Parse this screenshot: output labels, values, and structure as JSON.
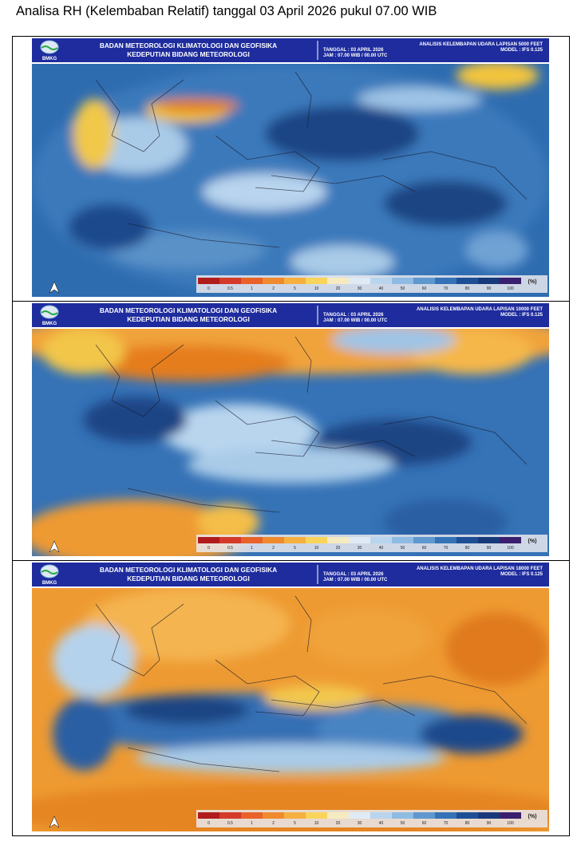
{
  "title": "Analisa RH (Kelembaban Relatif) tanggal 03 April 2026 pukul 07.00 WIB",
  "panels": [
    {
      "logo": "BMKG",
      "agency": "BADAN METEOROLOGI KLIMATOLOGI DAN GEOFISIKA",
      "deputy": "KEDEPUTIAN BIDANG METEOROLOGI",
      "analysis": "ANALISIS KELEMBAPAN UDARA LAPISAN 5000 FEET",
      "date": "TANGGAL : 03 APRIL 2026",
      "time": "JAM : 07.00 WIB / 00.00 UTC",
      "model": "MODEL : IFS 0.125",
      "legend": {
        "labels": [
          "0",
          "0.5",
          "1",
          "2",
          "5",
          "10",
          "20",
          "30",
          "40",
          "50",
          "60",
          "70",
          "80",
          "90",
          "100"
        ],
        "unit": "(%)"
      }
    },
    {
      "logo": "BMKG",
      "agency": "BADAN METEOROLOGI KLIMATOLOGI DAN GEOFISIKA",
      "deputy": "KEDEPUTIAN BIDANG METEOROLOGI",
      "analysis": "ANALISIS KELEMBAPAN UDARA LAPISAN 10000 FEET",
      "date": "TANGGAL : 03 APRIL 2026",
      "time": "JAM : 07.00 WIB / 00.00 UTC",
      "model": "MODEL : IFS 0.125",
      "legend": {
        "labels": [
          "0",
          "0.5",
          "1",
          "2",
          "5",
          "10",
          "20",
          "30",
          "40",
          "50",
          "60",
          "70",
          "80",
          "90",
          "100"
        ],
        "unit": "(%)"
      }
    },
    {
      "logo": "BMKG",
      "agency": "BADAN METEOROLOGI KLIMATOLOGI DAN GEOFISIKA",
      "deputy": "KEDEPUTIAN BIDANG METEOROLOGI",
      "analysis": "ANALISIS KELEMBAPAN UDARA LAPISAN 18000 FEET",
      "date": "TANGGAL : 03 APRIL 2026",
      "time": "JAM : 07.00 WIB / 00.00 UTC",
      "model": "MODEL : IFS 0.125",
      "legend": {
        "labels": [
          "0",
          "0.5",
          "1",
          "2",
          "5",
          "10",
          "20",
          "30",
          "40",
          "50",
          "60",
          "70",
          "80",
          "90",
          "100"
        ],
        "unit": "(%)"
      }
    }
  ]
}
